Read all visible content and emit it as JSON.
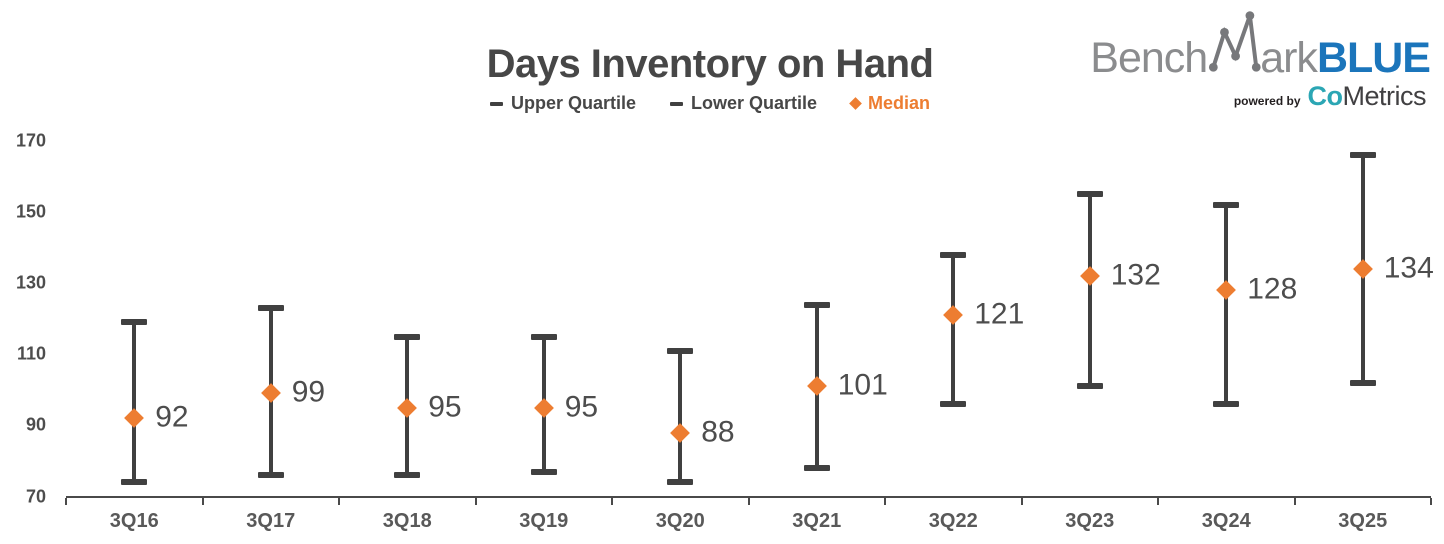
{
  "title": "Days Inventory on Hand",
  "legend": {
    "upper_label": "Upper Quartile",
    "lower_label": "Lower Quartile",
    "median_label": "Median"
  },
  "logo": {
    "bench": "Bench",
    "ark": "ark",
    "blue": "BLUE",
    "powered_by": "powered by",
    "co": "Co",
    "metrics": "Metrics"
  },
  "colors": {
    "whisker": "#404040",
    "median": "#ED7D31",
    "logo_gray": "#8b8c8e",
    "logo_blue": "#1b75bb",
    "logo_teal": "#2ba6b4"
  },
  "chart_data": {
    "type": "scatter",
    "subtype": "quartile-range-whisker",
    "title": "Days Inventory on Hand",
    "categories": [
      "3Q16",
      "3Q17",
      "3Q18",
      "3Q19",
      "3Q20",
      "3Q21",
      "3Q22",
      "3Q23",
      "3Q24",
      "3Q25"
    ],
    "series": [
      {
        "name": "Upper Quartile",
        "values": [
          119,
          123,
          115,
          115,
          111,
          124,
          138,
          155,
          152,
          166
        ]
      },
      {
        "name": "Lower Quartile",
        "values": [
          74,
          76,
          76,
          77,
          74,
          78,
          96,
          101,
          96,
          102
        ]
      },
      {
        "name": "Median",
        "values": [
          92,
          99,
          95,
          95,
          88,
          101,
          121,
          132,
          128,
          134
        ]
      }
    ],
    "data_labels_series": "Median",
    "ylim": [
      70,
      170
    ],
    "yticks": [
      70,
      90,
      110,
      130,
      150,
      170
    ],
    "grid": false,
    "legend_position": "top-center"
  }
}
